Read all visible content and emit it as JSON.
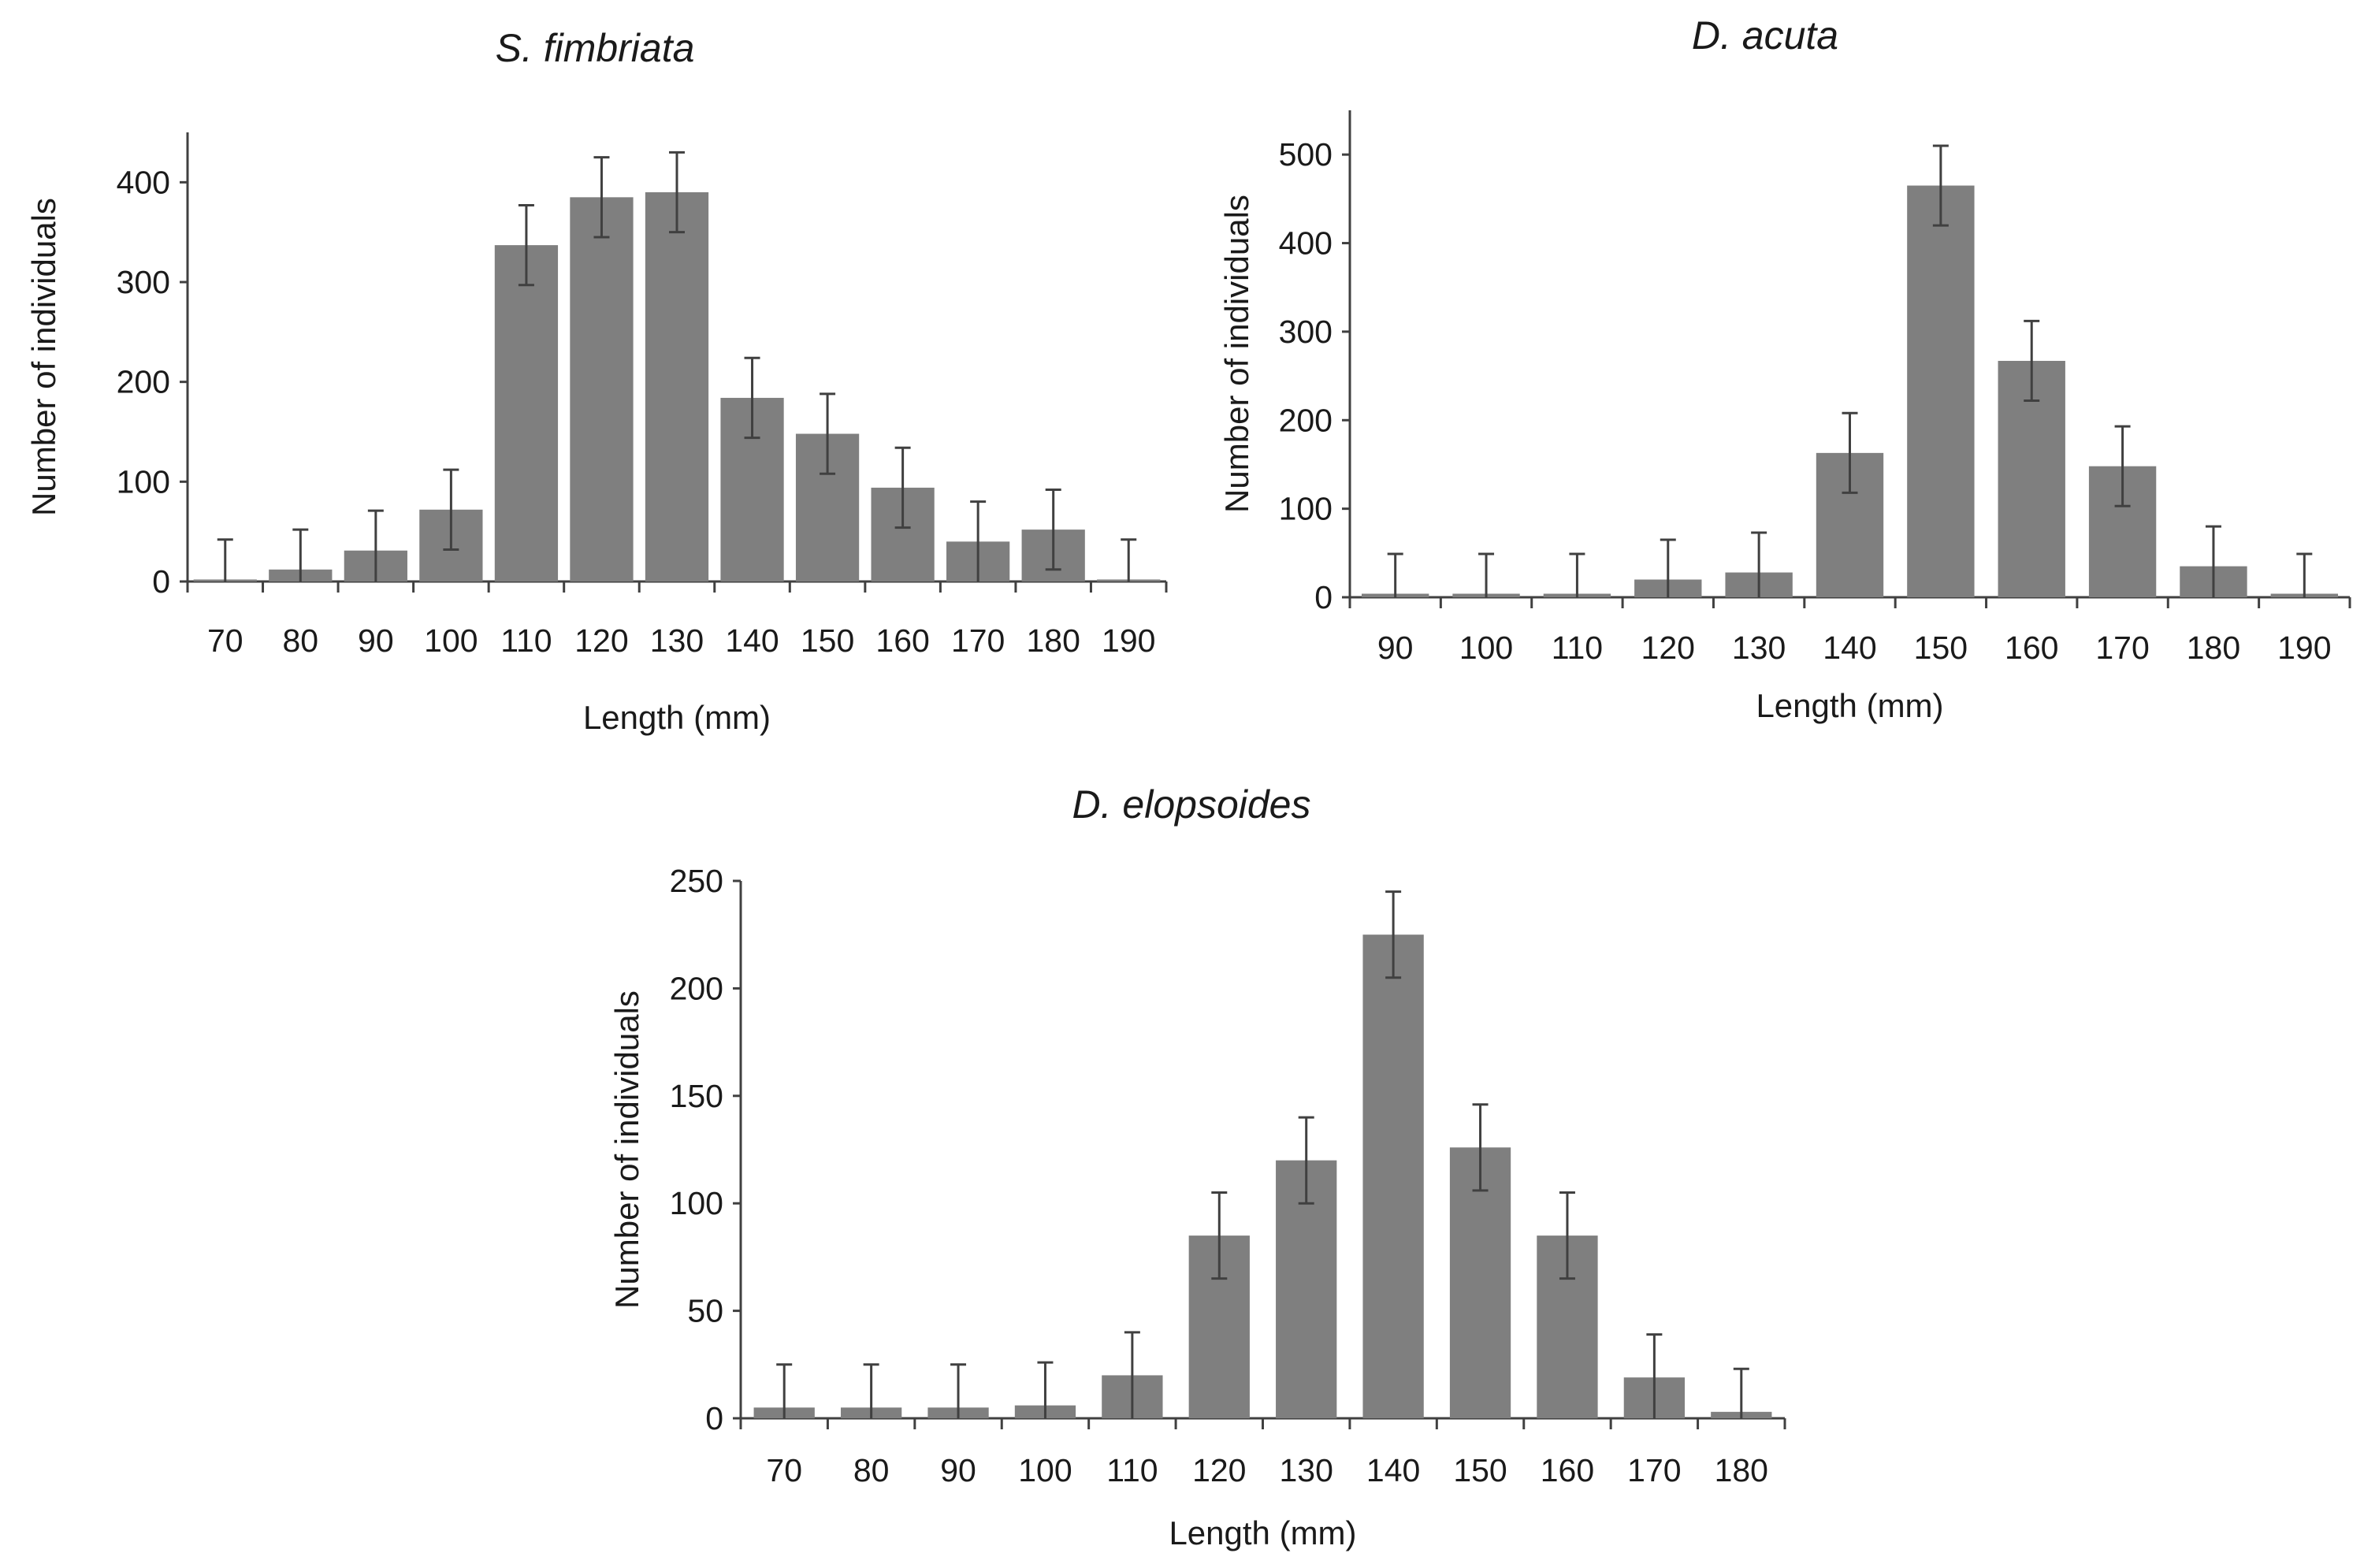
{
  "chart_data": [
    {
      "type": "bar",
      "title": "S. fimbriata",
      "xlabel": "Length (mm)",
      "ylabel": "Number of individuals",
      "categories": [
        "70",
        "80",
        "90",
        "100",
        "110",
        "120",
        "130",
        "140",
        "150",
        "160",
        "170",
        "180",
        "190"
      ],
      "values": [
        2,
        12,
        31,
        72,
        337,
        385,
        390,
        184,
        148,
        94,
        40,
        52,
        2
      ],
      "error": [
        40,
        40,
        40,
        40,
        40,
        40,
        40,
        40,
        40,
        40,
        40,
        40,
        40
      ],
      "ylim": [
        0,
        450
      ],
      "yticks": [
        0,
        100,
        200,
        300,
        400
      ]
    },
    {
      "type": "bar",
      "title": "D. acuta",
      "xlabel": "Length (mm)",
      "ylabel": "Number of individuals",
      "categories": [
        "90",
        "100",
        "110",
        "120",
        "130",
        "140",
        "150",
        "160",
        "170",
        "180",
        "190"
      ],
      "values": [
        4,
        4,
        4,
        20,
        28,
        163,
        465,
        267,
        148,
        35,
        4
      ],
      "error": [
        45,
        45,
        45,
        45,
        45,
        45,
        45,
        45,
        45,
        45,
        45
      ],
      "ylim": [
        0,
        550
      ],
      "yticks": [
        0,
        100,
        200,
        300,
        400,
        500
      ]
    },
    {
      "type": "bar",
      "title": "D. elopsoides",
      "xlabel": "Length (mm)",
      "ylabel": "Number of individuals",
      "categories": [
        "70",
        "80",
        "90",
        "100",
        "110",
        "120",
        "130",
        "140",
        "150",
        "160",
        "170",
        "180"
      ],
      "values": [
        5,
        5,
        5,
        6,
        20,
        85,
        120,
        225,
        126,
        85,
        19,
        3
      ],
      "error": [
        20,
        20,
        20,
        20,
        20,
        20,
        20,
        20,
        20,
        20,
        20,
        20
      ],
      "ylim": [
        0,
        250
      ],
      "yticks": [
        0,
        50,
        100,
        150,
        200,
        250
      ]
    }
  ]
}
